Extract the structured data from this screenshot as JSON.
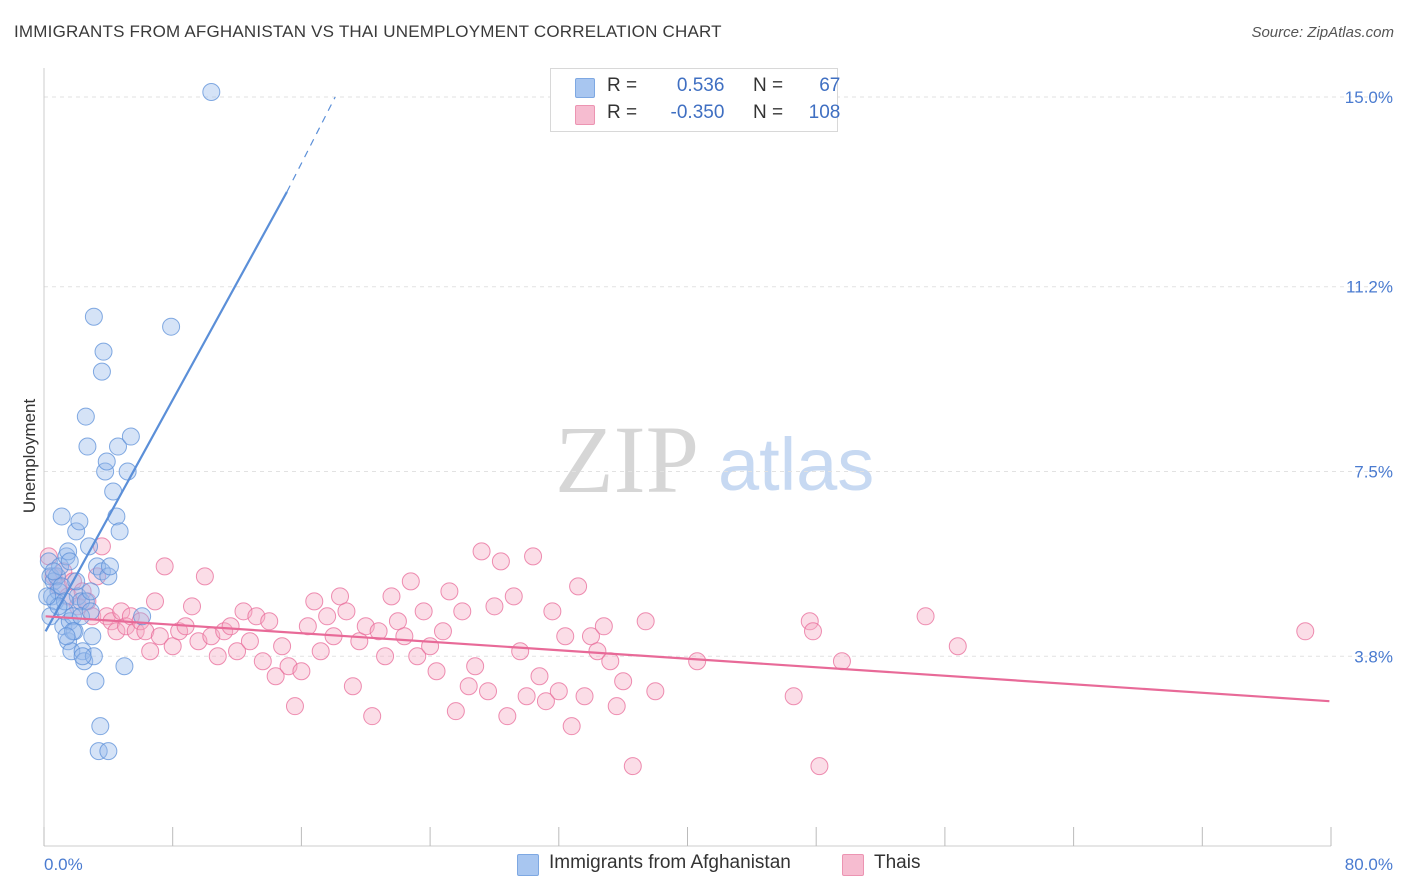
{
  "title": "IMMIGRANTS FROM AFGHANISTAN VS THAI UNEMPLOYMENT CORRELATION CHART",
  "source": "Source: ZipAtlas.com",
  "watermark": {
    "zip": "ZIP",
    "atlas": "atlas"
  },
  "legend": {
    "rows": [
      {
        "r_label": "R =",
        "r_value": "0.536",
        "n_label": "N =",
        "n_value": "67",
        "color": "#a8c6f0",
        "border": "#7ea8e2"
      },
      {
        "r_label": "R =",
        "r_value": "-0.350",
        "n_label": "N =",
        "n_value": "108",
        "color": "#f6bcd0",
        "border": "#ec94b2"
      }
    ]
  },
  "chart_data": {
    "type": "scatter",
    "title": "IMMIGRANTS FROM AFGHANISTAN VS THAI UNEMPLOYMENT CORRELATION CHART",
    "xlabel": "",
    "ylabel": "Unemployment",
    "xlim": [
      0,
      80
    ],
    "ylim": [
      0,
      15.5
    ],
    "x_tick_labels": [
      "0.0%",
      "80.0%"
    ],
    "y_ticks": [
      3.8,
      7.5,
      11.2,
      15.0
    ],
    "y_tick_labels": [
      "3.8%",
      "7.5%",
      "11.2%",
      "15.0%"
    ],
    "grid": "horizontal dashed",
    "legend_position": "top-center",
    "series": [
      {
        "name": "Immigrants from Afghanistan",
        "color": "#5b8fd8",
        "fill": "rgba(150,185,235,0.40)",
        "trend": {
          "x": [
            0.1,
            15.1
          ],
          "y": [
            4.3,
            13.1
          ],
          "dash_to": [
            18.1,
            15.0
          ]
        },
        "points": [
          [
            0.3,
            5.7
          ],
          [
            0.4,
            5.4
          ],
          [
            0.6,
            5.3
          ],
          [
            0.5,
            5.0
          ],
          [
            0.8,
            5.4
          ],
          [
            0.9,
            5.1
          ],
          [
            0.7,
            4.9
          ],
          [
            1.0,
            5.6
          ],
          [
            1.1,
            5.2
          ],
          [
            0.4,
            4.6
          ],
          [
            1.2,
            4.4
          ],
          [
            1.3,
            4.7
          ],
          [
            1.4,
            5.8
          ],
          [
            1.5,
            5.9
          ],
          [
            1.6,
            4.5
          ],
          [
            1.5,
            4.1
          ],
          [
            1.7,
            3.9
          ],
          [
            1.8,
            4.6
          ],
          [
            1.9,
            4.3
          ],
          [
            2.0,
            6.3
          ],
          [
            2.1,
            5.0
          ],
          [
            2.2,
            6.5
          ],
          [
            2.3,
            4.9
          ],
          [
            2.4,
            3.9
          ],
          [
            2.5,
            3.7
          ],
          [
            2.6,
            4.9
          ],
          [
            2.7,
            8.0
          ],
          [
            2.6,
            8.6
          ],
          [
            2.8,
            6.0
          ],
          [
            2.9,
            5.1
          ],
          [
            3.0,
            4.2
          ],
          [
            3.1,
            3.8
          ],
          [
            3.2,
            3.3
          ],
          [
            3.3,
            5.6
          ],
          [
            3.4,
            1.9
          ],
          [
            3.5,
            2.4
          ],
          [
            3.6,
            5.5
          ],
          [
            3.6,
            9.5
          ],
          [
            3.7,
            9.9
          ],
          [
            3.8,
            7.5
          ],
          [
            3.9,
            7.7
          ],
          [
            4.0,
            1.9
          ],
          [
            4.0,
            5.4
          ],
          [
            4.3,
            7.1
          ],
          [
            4.5,
            6.6
          ],
          [
            4.6,
            8.0
          ],
          [
            4.7,
            6.3
          ],
          [
            5.0,
            3.6
          ],
          [
            5.2,
            7.5
          ],
          [
            5.4,
            8.2
          ],
          [
            6.1,
            4.6
          ],
          [
            1.1,
            6.6
          ],
          [
            1.3,
            4.9
          ],
          [
            0.6,
            5.5
          ],
          [
            1.8,
            4.3
          ],
          [
            2.3,
            4.6
          ],
          [
            3.1,
            10.6
          ],
          [
            7.9,
            10.4
          ],
          [
            10.4,
            15.1
          ],
          [
            2.0,
            5.3
          ],
          [
            0.9,
            4.8
          ],
          [
            1.6,
            5.7
          ],
          [
            2.9,
            4.7
          ],
          [
            1.4,
            4.2
          ],
          [
            0.2,
            5.0
          ],
          [
            2.4,
            3.8
          ],
          [
            4.1,
            5.6
          ]
        ]
      },
      {
        "name": "Thais",
        "color": "#e86a98",
        "fill": "rgba(244,170,196,0.40)",
        "trend": {
          "x": [
            0.1,
            79.9
          ],
          "y": [
            4.6,
            2.9
          ]
        },
        "points": [
          [
            0.3,
            5.8
          ],
          [
            0.6,
            5.4
          ],
          [
            0.9,
            5.2
          ],
          [
            1.2,
            5.5
          ],
          [
            1.5,
            5.0
          ],
          [
            1.8,
            5.3
          ],
          [
            2.1,
            4.8
          ],
          [
            2.4,
            5.1
          ],
          [
            2.7,
            4.9
          ],
          [
            3.0,
            4.6
          ],
          [
            3.3,
            5.4
          ],
          [
            3.6,
            6.0
          ],
          [
            3.9,
            4.6
          ],
          [
            4.2,
            4.5
          ],
          [
            4.5,
            4.3
          ],
          [
            4.8,
            4.7
          ],
          [
            5.1,
            4.4
          ],
          [
            5.4,
            4.6
          ],
          [
            5.7,
            4.3
          ],
          [
            6.0,
            4.5
          ],
          [
            6.3,
            4.3
          ],
          [
            6.6,
            3.9
          ],
          [
            6.9,
            4.9
          ],
          [
            7.2,
            4.2
          ],
          [
            7.5,
            5.6
          ],
          [
            8.0,
            4.0
          ],
          [
            8.4,
            4.3
          ],
          [
            8.8,
            4.4
          ],
          [
            9.2,
            4.8
          ],
          [
            9.6,
            4.1
          ],
          [
            10.0,
            5.4
          ],
          [
            10.4,
            4.2
          ],
          [
            10.8,
            3.8
          ],
          [
            11.2,
            4.3
          ],
          [
            11.6,
            4.4
          ],
          [
            12.0,
            3.9
          ],
          [
            12.4,
            4.7
          ],
          [
            12.8,
            4.1
          ],
          [
            13.2,
            4.6
          ],
          [
            13.6,
            3.7
          ],
          [
            14.0,
            4.5
          ],
          [
            14.4,
            3.4
          ],
          [
            14.8,
            4.0
          ],
          [
            15.2,
            3.6
          ],
          [
            15.6,
            2.8
          ],
          [
            16.0,
            3.5
          ],
          [
            16.4,
            4.4
          ],
          [
            16.8,
            4.9
          ],
          [
            17.2,
            3.9
          ],
          [
            17.6,
            4.6
          ],
          [
            18.0,
            4.2
          ],
          [
            18.4,
            5.0
          ],
          [
            18.8,
            4.7
          ],
          [
            19.2,
            3.2
          ],
          [
            19.6,
            4.1
          ],
          [
            20.0,
            4.4
          ],
          [
            20.4,
            2.6
          ],
          [
            20.8,
            4.3
          ],
          [
            21.2,
            3.8
          ],
          [
            21.6,
            5.0
          ],
          [
            22.0,
            4.5
          ],
          [
            22.4,
            4.2
          ],
          [
            22.8,
            5.3
          ],
          [
            23.2,
            3.8
          ],
          [
            23.6,
            4.7
          ],
          [
            24.0,
            4.0
          ],
          [
            24.4,
            3.5
          ],
          [
            24.8,
            4.3
          ],
          [
            25.2,
            5.1
          ],
          [
            25.6,
            2.7
          ],
          [
            26.0,
            4.7
          ],
          [
            26.4,
            3.2
          ],
          [
            26.8,
            3.6
          ],
          [
            27.2,
            5.9
          ],
          [
            27.6,
            3.1
          ],
          [
            28.0,
            4.8
          ],
          [
            28.4,
            5.7
          ],
          [
            28.8,
            2.6
          ],
          [
            29.2,
            5.0
          ],
          [
            29.6,
            3.9
          ],
          [
            30.0,
            3.0
          ],
          [
            30.4,
            5.8
          ],
          [
            30.8,
            3.4
          ],
          [
            31.2,
            2.9
          ],
          [
            31.6,
            4.7
          ],
          [
            32.0,
            3.1
          ],
          [
            32.4,
            4.2
          ],
          [
            32.8,
            2.4
          ],
          [
            33.2,
            5.2
          ],
          [
            33.6,
            3.0
          ],
          [
            34.0,
            4.2
          ],
          [
            34.4,
            3.9
          ],
          [
            34.8,
            4.4
          ],
          [
            35.2,
            3.7
          ],
          [
            35.6,
            2.8
          ],
          [
            36.0,
            3.3
          ],
          [
            36.6,
            1.6
          ],
          [
            37.4,
            4.5
          ],
          [
            38.0,
            3.1
          ],
          [
            40.6,
            3.7
          ],
          [
            46.6,
            3.0
          ],
          [
            47.6,
            4.5
          ],
          [
            47.8,
            4.3
          ],
          [
            48.2,
            1.6
          ],
          [
            49.6,
            3.7
          ],
          [
            54.8,
            4.6
          ],
          [
            56.8,
            4.0
          ],
          [
            78.4,
            4.3
          ]
        ]
      }
    ]
  },
  "bottom_legend": [
    {
      "label": "Immigrants from Afghanistan",
      "color": "#a8c6f0",
      "border": "#7ea8e2"
    },
    {
      "label": "Thais",
      "color": "#f6bcd0",
      "border": "#ec94b2"
    }
  ]
}
